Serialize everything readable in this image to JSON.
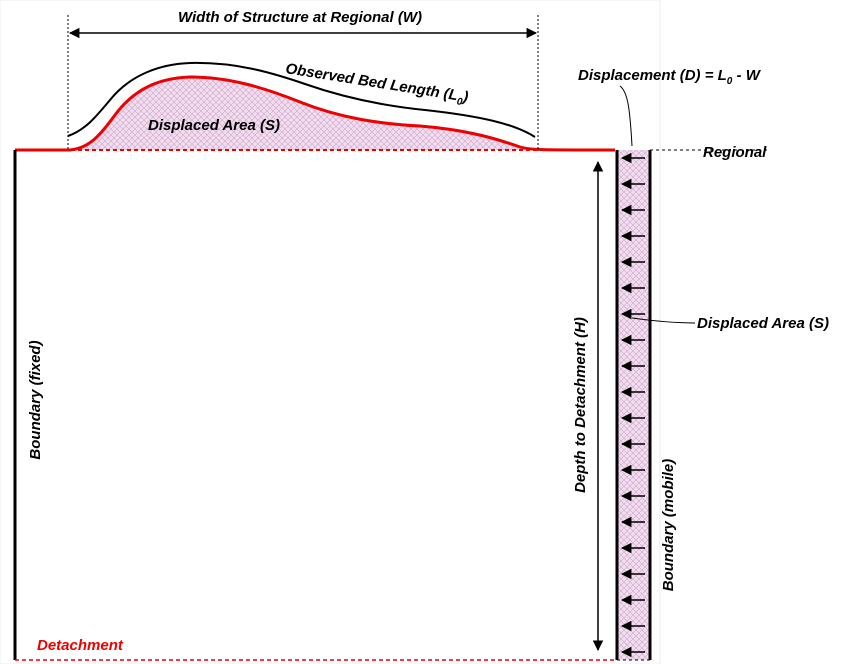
{
  "labels": {
    "width": "Width of Structure at Regional (W)",
    "bed_length": {
      "text": "Observed Bed Length (L",
      "sub": "0",
      "end": ")"
    },
    "displacement": {
      "text": "Displacement (D) = L",
      "sub": "0",
      "end": " - W"
    },
    "displaced_area_top": "Displaced Area (S)",
    "displaced_area_right": "Displaced Area (S)",
    "regional": "Regional",
    "boundary_fixed": "Boundary (fixed)",
    "depth": "Depth to Detachment (H)",
    "boundary_mobile": "Boundary (mobile)",
    "detachment": "Detachment"
  }
}
